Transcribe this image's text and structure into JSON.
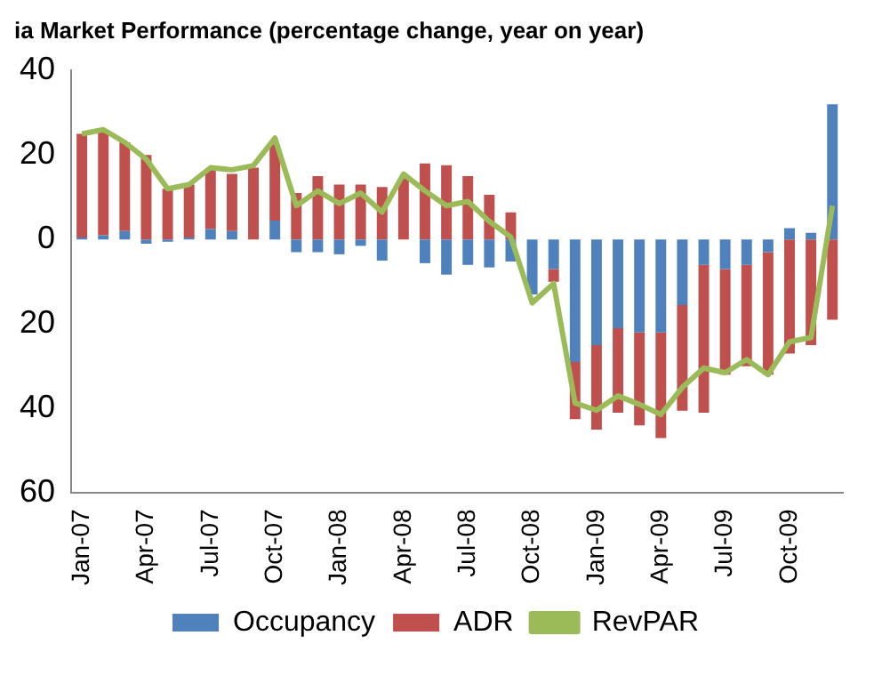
{
  "chart_data": {
    "type": "bar",
    "title": "ia Market Performance (percentage change, year on year)",
    "categories": [
      "Jan-07",
      null,
      null,
      "Apr-07",
      null,
      null,
      "Jul-07",
      null,
      null,
      "Oct-07",
      null,
      null,
      "Jan-08",
      null,
      null,
      "Apr-08",
      null,
      null,
      "Jul-08",
      null,
      null,
      "Oct-08",
      null,
      null,
      "Jan-09",
      null,
      null,
      "Apr-09",
      null,
      null,
      "Jul-09",
      null,
      null,
      "Oct-09",
      null,
      null
    ],
    "stacked": true,
    "series": [
      {
        "name": "Occupancy",
        "color": "#4f81bd",
        "values": [
          0.5,
          1,
          2,
          -1,
          -0.5,
          0.5,
          2.5,
          2,
          0,
          4.5,
          -3,
          -3,
          -3.5,
          -1.5,
          -5,
          0,
          -5.6,
          -8.3,
          -6,
          -6.6,
          -5.2,
          -13,
          -7,
          -29,
          -25,
          -21,
          -22,
          -22,
          -15.5,
          -6,
          -7,
          -6,
          -3,
          2.7,
          1.6,
          32
        ]
      },
      {
        "name": "ADR",
        "color": "#c0504d",
        "values": [
          24.5,
          24.5,
          21,
          20,
          12,
          12.5,
          14,
          13.5,
          17,
          18,
          11,
          15,
          13,
          13,
          12.4,
          14.5,
          18,
          17.6,
          15,
          10.6,
          6.4,
          null,
          -3,
          -13.5,
          -20,
          -20,
          -22,
          -25,
          -25,
          -35,
          -25,
          -24,
          -29,
          -27,
          -25,
          -19
        ]
      },
      {
        "name": "RevPAR",
        "type": "line",
        "color": "#9bbb59",
        "values": [
          25,
          26,
          23,
          19,
          12,
          13,
          17,
          16.5,
          17.5,
          24,
          8,
          11.5,
          8.5,
          11,
          6.5,
          15.5,
          11.5,
          8,
          9,
          4.3,
          0.6,
          -15,
          -10.4,
          -38.7,
          -40.4,
          -37,
          -39,
          -41.4,
          -35,
          -30.4,
          -31.5,
          -28.4,
          -32,
          -24.2,
          -23.2,
          8
        ]
      }
    ],
    "ylim": [
      -60,
      40
    ],
    "yticks": [
      40,
      20,
      0,
      {
        "value": -20,
        "label": "20"
      },
      {
        "value": -40,
        "label": "40"
      },
      {
        "value": -60,
        "label": "60"
      }
    ],
    "grid": false,
    "legend": "bottom",
    "marker": "none",
    "line_style": "solid"
  }
}
